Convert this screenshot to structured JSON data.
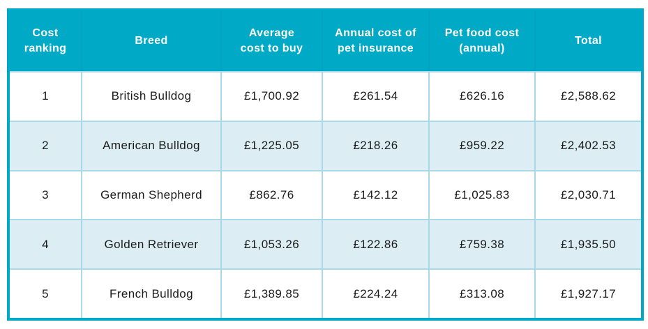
{
  "colors": {
    "header_bg": "#00A9C6",
    "header_text": "#FFFFFF",
    "row_bg": "#FFFFFF",
    "row_alt_bg": "#DCEEF3",
    "cell_border": "#A9D9E8",
    "outer_border": "#00A9C6",
    "body_text": "#1B1B1B"
  },
  "chart_data": {
    "type": "table",
    "columns": [
      "Cost\nranking",
      "Breed",
      "Average\ncost to buy",
      "Annual cost of\npet insurance",
      "Pet food cost\n(annual)",
      "Total"
    ],
    "rows": [
      [
        "1",
        "British Bulldog",
        "£1,700.92",
        "£261.54",
        "£626.16",
        "£2,588.62"
      ],
      [
        "2",
        "American Bulldog",
        "£1,225.05",
        "£218.26",
        "£959.22",
        "£2,402.53"
      ],
      [
        "3",
        "German Shepherd",
        "£862.76",
        "£142.12",
        "£1,025.83",
        "£2,030.71"
      ],
      [
        "4",
        "Golden Retriever",
        "£1,053.26",
        "£122.86",
        "£759.38",
        "£1,935.50"
      ],
      [
        "5",
        "French Bulldog",
        "£1,389.85",
        "£224.24",
        "£313.08",
        "£1,927.17"
      ]
    ]
  }
}
